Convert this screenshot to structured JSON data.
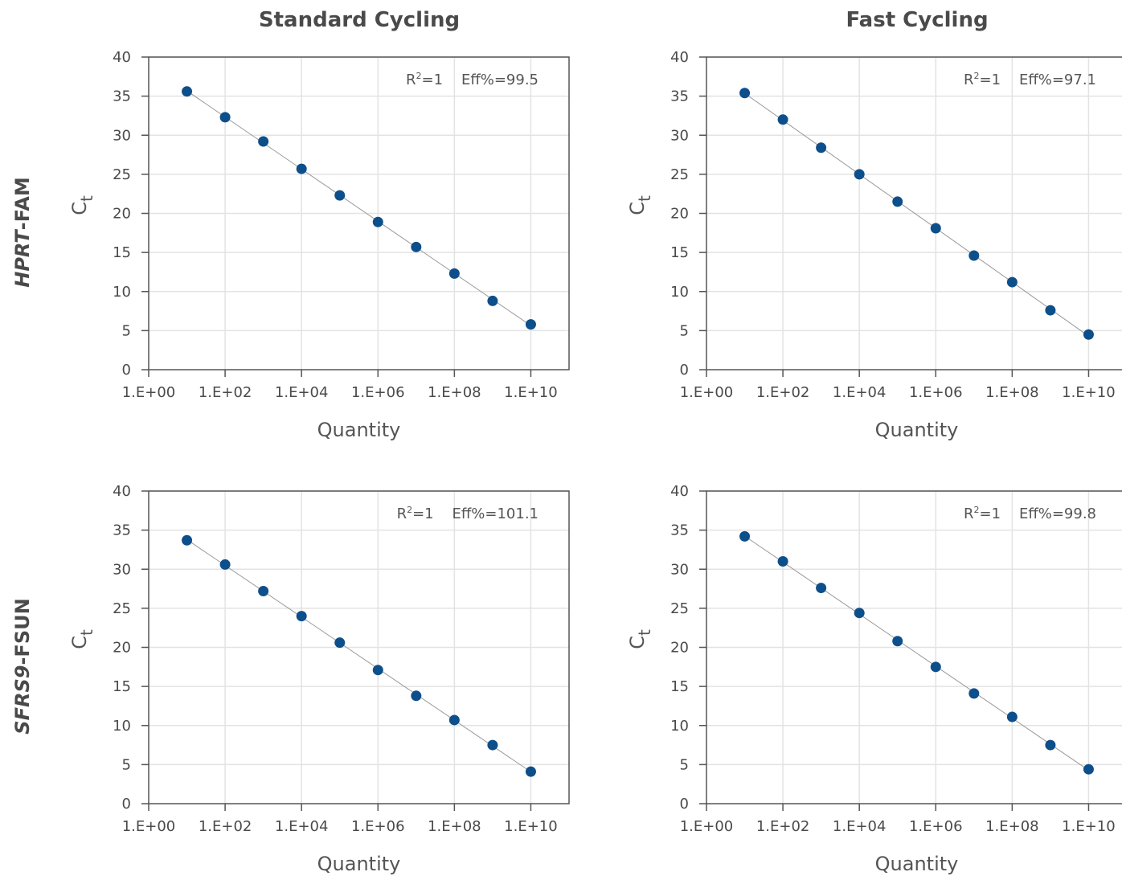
{
  "columns": [
    "Standard Cycling",
    "Fast Cycling"
  ],
  "rows": [
    {
      "gene": "HPRT",
      "suffix": "-FAM"
    },
    {
      "gene": "SFRS9",
      "suffix": "-FSUN"
    }
  ],
  "colors": {
    "point": "#0d4f8b",
    "line": "#999999",
    "grid": "#e3e3e3",
    "axis": "#555555"
  },
  "chart_data": [
    {
      "type": "scatter",
      "panel": "Standard Cycling / HPRT-FAM",
      "xlabel": "Quantity",
      "ylabel": "Ct",
      "xscale": "log",
      "xlim": [
        1,
        100000000000.0
      ],
      "ylim": [
        0,
        40
      ],
      "xticks": [
        "1.E+00",
        "1.E+02",
        "1.E+04",
        "1.E+06",
        "1.E+08",
        "1.E+10"
      ],
      "yticks": [
        0,
        5,
        10,
        15,
        20,
        25,
        30,
        35,
        40
      ],
      "r2": "1",
      "eff": "99.5",
      "x": [
        10,
        100,
        1000,
        10000,
        100000,
        1000000,
        10000000,
        100000000,
        1000000000,
        10000000000
      ],
      "y": [
        35.6,
        32.3,
        29.2,
        25.7,
        22.3,
        18.9,
        15.7,
        12.3,
        8.8,
        5.8
      ],
      "grid": true
    },
    {
      "type": "scatter",
      "panel": "Fast Cycling / HPRT-FAM",
      "xlabel": "Quantity",
      "ylabel": "Ct",
      "xscale": "log",
      "xlim": [
        1,
        100000000000.0
      ],
      "ylim": [
        0,
        40
      ],
      "xticks": [
        "1.E+00",
        "1.E+02",
        "1.E+04",
        "1.E+06",
        "1.E+08",
        "1.E+10"
      ],
      "yticks": [
        0,
        5,
        10,
        15,
        20,
        25,
        30,
        35,
        40
      ],
      "r2": "1",
      "eff": "97.1",
      "x": [
        10,
        100,
        1000,
        10000,
        100000,
        1000000,
        10000000,
        100000000,
        1000000000,
        10000000000
      ],
      "y": [
        35.4,
        32.0,
        28.4,
        25.0,
        21.5,
        18.1,
        14.6,
        11.2,
        7.6,
        4.5
      ],
      "grid": true
    },
    {
      "type": "scatter",
      "panel": "Standard Cycling / SFRS9-FSUN",
      "xlabel": "Quantity",
      "ylabel": "Ct",
      "xscale": "log",
      "xlim": [
        1,
        100000000000.0
      ],
      "ylim": [
        0,
        40
      ],
      "xticks": [
        "1.E+00",
        "1.E+02",
        "1.E+04",
        "1.E+06",
        "1.E+08",
        "1.E+10"
      ],
      "yticks": [
        0,
        5,
        10,
        15,
        20,
        25,
        30,
        35,
        40
      ],
      "r2": "1",
      "eff": "101.1",
      "x": [
        10,
        100,
        1000,
        10000,
        100000,
        1000000,
        10000000,
        100000000,
        1000000000,
        10000000000
      ],
      "y": [
        33.7,
        30.6,
        27.2,
        24.0,
        20.6,
        17.1,
        13.8,
        10.7,
        7.5,
        4.1
      ],
      "grid": true
    },
    {
      "type": "scatter",
      "panel": "Fast Cycling / SFRS9-FSUN",
      "xlabel": "Quantity",
      "ylabel": "Ct",
      "xscale": "log",
      "xlim": [
        1,
        100000000000.0
      ],
      "ylim": [
        0,
        40
      ],
      "xticks": [
        "1.E+00",
        "1.E+02",
        "1.E+04",
        "1.E+06",
        "1.E+08",
        "1.E+10"
      ],
      "yticks": [
        0,
        5,
        10,
        15,
        20,
        25,
        30,
        35,
        40
      ],
      "r2": "1",
      "eff": "99.8",
      "x": [
        10,
        100,
        1000,
        10000,
        100000,
        1000000,
        10000000,
        100000000,
        1000000000,
        10000000000
      ],
      "y": [
        34.2,
        31.0,
        27.6,
        24.4,
        20.8,
        17.5,
        14.1,
        11.1,
        7.5,
        4.4
      ],
      "grid": true
    }
  ]
}
